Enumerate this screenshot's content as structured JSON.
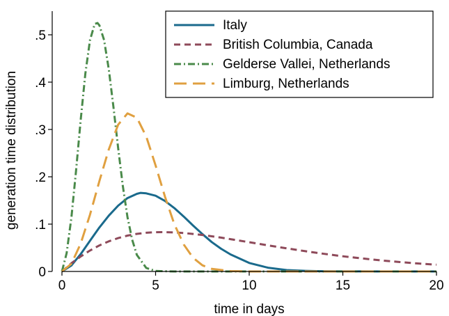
{
  "chart_data": {
    "type": "line",
    "title": "",
    "xlabel": "time in days",
    "ylabel": "generation time distribution",
    "xlim": [
      0,
      20
    ],
    "ylim": [
      0,
      0.55
    ],
    "x_ticks": [
      0,
      5,
      10,
      15,
      20
    ],
    "x_tick_labels": [
      "0",
      "5",
      "10",
      "15",
      "20"
    ],
    "y_ticks": [
      0,
      0.1,
      0.2,
      0.3,
      0.4,
      0.5
    ],
    "y_tick_labels": [
      "0",
      ".1",
      ".2",
      ".3",
      ".4",
      ".5"
    ],
    "grid": false,
    "legend_position": "top-right",
    "series": [
      {
        "name": "Italy",
        "color": "#1a6a8c",
        "dash": "solid",
        "x": [
          0,
          0.5,
          1,
          1.5,
          2,
          2.5,
          3,
          3.5,
          4,
          4.2,
          4.5,
          5,
          5.5,
          6,
          6.5,
          7,
          7.5,
          8,
          8.5,
          9,
          10,
          11,
          12,
          13,
          14,
          15,
          16,
          17,
          18,
          19,
          20
        ],
        "y": [
          0,
          0.0125,
          0.0366,
          0.0648,
          0.0929,
          0.118,
          0.139,
          0.155,
          0.164,
          0.166,
          0.165,
          0.16,
          0.149,
          0.134,
          0.116,
          0.097,
          0.079,
          0.062,
          0.048,
          0.036,
          0.018,
          0.008,
          0.003,
          0.0013,
          0.0005,
          0.0002,
          0.0001,
          0,
          0,
          0,
          0
        ]
      },
      {
        "name": "British Columbia, Canada",
        "color": "#8e4a5a",
        "dash": "short-dash",
        "x": [
          0,
          0.5,
          1,
          1.5,
          2,
          2.5,
          3,
          3.5,
          4,
          4.5,
          5,
          5.5,
          6,
          6.5,
          7,
          7.5,
          8,
          8.5,
          9,
          10,
          11,
          12,
          13,
          14,
          15,
          16,
          17,
          18,
          19,
          20
        ],
        "y": [
          0,
          0.0174,
          0.0316,
          0.0443,
          0.055,
          0.0637,
          0.0705,
          0.0757,
          0.0794,
          0.0817,
          0.0829,
          0.0831,
          0.0825,
          0.0812,
          0.0793,
          0.077,
          0.0743,
          0.0714,
          0.0683,
          0.0618,
          0.0552,
          0.0488,
          0.0428,
          0.0372,
          0.0321,
          0.0276,
          0.0235,
          0.02,
          0.0169,
          0.0142
        ]
      },
      {
        "name": "Gelderse Vallei, Netherlands",
        "color": "#4a8a4a",
        "dash": "dash-dot",
        "x": [
          0,
          0.25,
          0.5,
          0.75,
          1,
          1.25,
          1.5,
          1.75,
          1.9,
          2,
          2.25,
          2.5,
          2.75,
          3,
          3.25,
          3.5,
          3.75,
          4,
          4.5,
          5,
          6,
          8,
          10,
          14,
          20
        ],
        "y": [
          0,
          0.0385,
          0.113,
          0.212,
          0.32,
          0.418,
          0.489,
          0.523,
          0.525,
          0.52,
          0.489,
          0.427,
          0.347,
          0.261,
          0.181,
          0.115,
          0.067,
          0.035,
          0.0074,
          0.0011,
          0,
          0,
          0,
          0,
          0
        ]
      },
      {
        "name": "Limburg, Netherlands",
        "color": "#e0a040",
        "dash": "long-dash",
        "x": [
          0,
          0.5,
          1,
          1.5,
          2,
          2.5,
          3,
          3.5,
          4,
          4.5,
          5,
          5.5,
          6,
          6.5,
          7,
          7.5,
          8,
          9,
          10,
          14,
          20
        ],
        "y": [
          0,
          0.016,
          0.0588,
          0.12,
          0.191,
          0.258,
          0.31,
          0.334,
          0.325,
          0.285,
          0.224,
          0.158,
          0.1,
          0.057,
          0.029,
          0.013,
          0.0054,
          0.0007,
          0,
          0,
          0
        ]
      }
    ]
  }
}
